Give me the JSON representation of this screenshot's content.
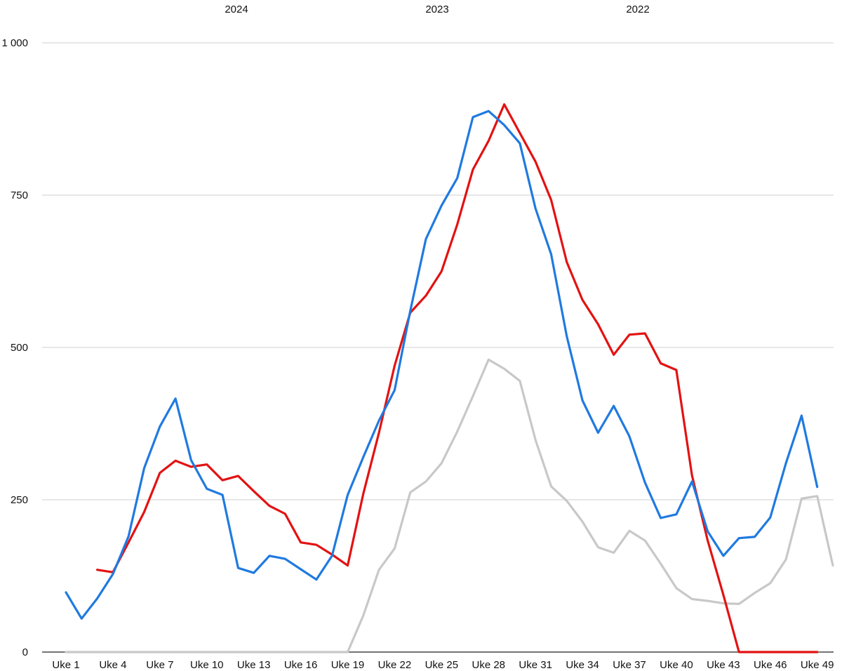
{
  "chart_data": {
    "type": "line",
    "title": "",
    "xlabel": "",
    "ylabel": "",
    "ylim": [
      0,
      1000
    ],
    "yticks": [
      0,
      250,
      500,
      750,
      1000
    ],
    "ytick_labels": [
      "0",
      "250",
      "500",
      "750",
      "1 000"
    ],
    "grid": true,
    "legend_position": "top",
    "x": [
      "Uke 1",
      "Uke 2",
      "Uke 3",
      "Uke 4",
      "Uke 5",
      "Uke 6",
      "Uke 7",
      "Uke 8",
      "Uke 9",
      "Uke 10",
      "Uke 11",
      "Uke 12",
      "Uke 13",
      "Uke 14",
      "Uke 15",
      "Uke 16",
      "Uke 17",
      "Uke 18",
      "Uke 19",
      "Uke 20",
      "Uke 21",
      "Uke 22",
      "Uke 23",
      "Uke 24",
      "Uke 25",
      "Uke 26",
      "Uke 27",
      "Uke 28",
      "Uke 29",
      "Uke 30",
      "Uke 31",
      "Uke 32",
      "Uke 33",
      "Uke 34",
      "Uke 35",
      "Uke 36",
      "Uke 37",
      "Uke 38",
      "Uke 39",
      "Uke 40",
      "Uke 41",
      "Uke 42",
      "Uke 43",
      "Uke 44",
      "Uke 45",
      "Uke 46",
      "Uke 47",
      "Uke 48",
      "Uke 49",
      "Uke 50"
    ],
    "x_tick_labels": [
      "Uke 1",
      "Uke 4",
      "Uke 7",
      "Uke 10",
      "Uke 13",
      "Uke 16",
      "Uke 19",
      "Uke 22",
      "Uke 25",
      "Uke 28",
      "Uke 31",
      "Uke 34",
      "Uke 37",
      "Uke 40",
      "Uke 43",
      "Uke 46",
      "Uke 49"
    ],
    "series": [
      {
        "name": "2024",
        "color": "#1f7ae0",
        "values": [
          98,
          55,
          88,
          128,
          190,
          302,
          370,
          416,
          315,
          268,
          258,
          138,
          130,
          158,
          153,
          136,
          119,
          158,
          258,
          320,
          380,
          430,
          560,
          678,
          733,
          778,
          878,
          888,
          865,
          835,
          728,
          653,
          518,
          413,
          360,
          404,
          354,
          278,
          220,
          226,
          280,
          198,
          158,
          187,
          189,
          221,
          310,
          388,
          271,
          null
        ]
      },
      {
        "name": "2023",
        "color": "#e31212",
        "values": [
          null,
          null,
          135,
          131,
          180,
          230,
          294,
          314,
          304,
          308,
          282,
          289,
          264,
          240,
          227,
          180,
          176,
          160,
          142,
          260,
          360,
          470,
          557,
          585,
          625,
          702,
          792,
          839,
          899,
          852,
          805,
          742,
          640,
          578,
          538,
          488,
          521,
          523,
          474,
          463,
          290,
          183,
          94,
          0,
          0,
          0,
          0,
          0,
          0,
          null
        ]
      },
      {
        "name": "2022",
        "color": "#c8c8c8",
        "values": [
          0,
          0,
          0,
          0,
          0,
          0,
          0,
          0,
          0,
          0,
          0,
          0,
          0,
          0,
          0,
          0,
          0,
          0,
          0,
          60,
          135,
          170,
          262,
          280,
          310,
          362,
          420,
          480,
          465,
          445,
          348,
          272,
          248,
          214,
          172,
          163,
          199,
          183,
          145,
          105,
          87,
          84,
          80,
          79,
          97,
          113,
          152,
          252,
          256,
          142
        ]
      }
    ]
  }
}
